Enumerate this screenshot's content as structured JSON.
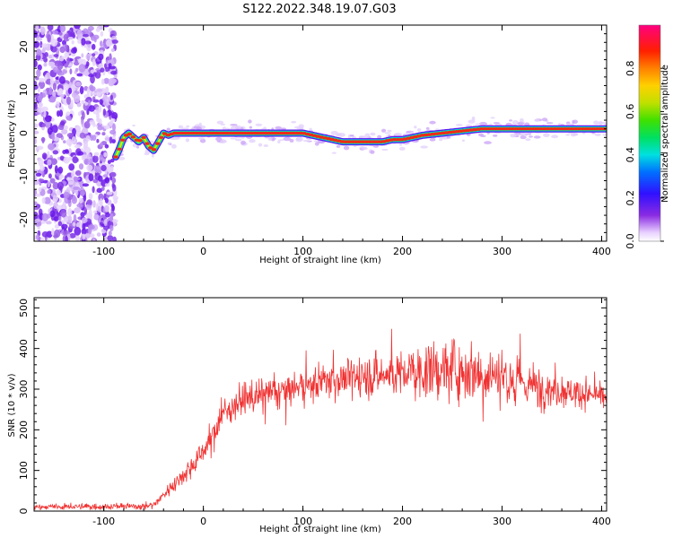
{
  "title": "S122.2022.348.19.07.G03",
  "chart_data": [
    {
      "type": "heatmap",
      "xlabel": "Height of straight line (km)",
      "ylabel": "Frequency (Hz)",
      "xlim": [
        -170,
        405
      ],
      "ylim": [
        -25,
        25
      ],
      "xticks": [
        -100,
        0,
        100,
        200,
        300,
        400
      ],
      "yticks": [
        -20,
        -10,
        0,
        10,
        20
      ],
      "colorbar": {
        "label": "Normalized spectral amplitude",
        "range": [
          0.0,
          1.0
        ],
        "ticks": [
          0.0,
          0.2,
          0.4,
          0.6,
          0.8
        ]
      },
      "noise_region_x": [
        -170,
        -88
      ],
      "peak_track": {
        "x": [
          -88,
          -85,
          -80,
          -75,
          -70,
          -65,
          -60,
          -55,
          -50,
          -45,
          -40,
          -35,
          -30,
          -20,
          0,
          50,
          100,
          120,
          130,
          140,
          160,
          180,
          190,
          200,
          210,
          220,
          240,
          260,
          280,
          300,
          350,
          400
        ],
        "y": [
          -5.5,
          -4,
          -1,
          0,
          -1,
          -2,
          -1,
          -3,
          -4,
          -2,
          0,
          -0.5,
          0,
          0,
          0,
          0,
          0,
          -1,
          -1.5,
          -2,
          -2,
          -2,
          -1.5,
          -1.5,
          -1,
          -0.5,
          0,
          0.5,
          1,
          1,
          1,
          1
        ]
      }
    },
    {
      "type": "line",
      "xlabel": "Height of straight line (km)",
      "ylabel": "SNR (10 * v/v)",
      "xlim": [
        -170,
        405
      ],
      "ylim": [
        0,
        525
      ],
      "xticks": [
        -100,
        0,
        100,
        200,
        300,
        400
      ],
      "yticks": [
        0,
        100,
        200,
        300,
        400,
        500
      ],
      "color": "#f03232",
      "trend": {
        "x": [
          -170,
          -60,
          -50,
          -40,
          -30,
          -20,
          -10,
          0,
          10,
          20,
          30,
          40,
          50,
          60,
          80,
          100,
          120,
          150,
          180,
          200,
          230,
          250,
          270,
          300,
          320,
          350,
          380,
          405
        ],
        "y": [
          10,
          12,
          15,
          40,
          65,
          90,
          115,
          150,
          190,
          240,
          260,
          275,
          280,
          285,
          295,
          305,
          320,
          330,
          335,
          340,
          345,
          350,
          345,
          335,
          315,
          300,
          290,
          280
        ]
      },
      "spread": {
        "x": [
          -170,
          -50,
          0,
          50,
          100,
          150,
          200,
          250,
          300,
          350,
          405
        ],
        "y": [
          5,
          7,
          25,
          30,
          32,
          38,
          48,
          60,
          55,
          35,
          20
        ]
      }
    }
  ]
}
